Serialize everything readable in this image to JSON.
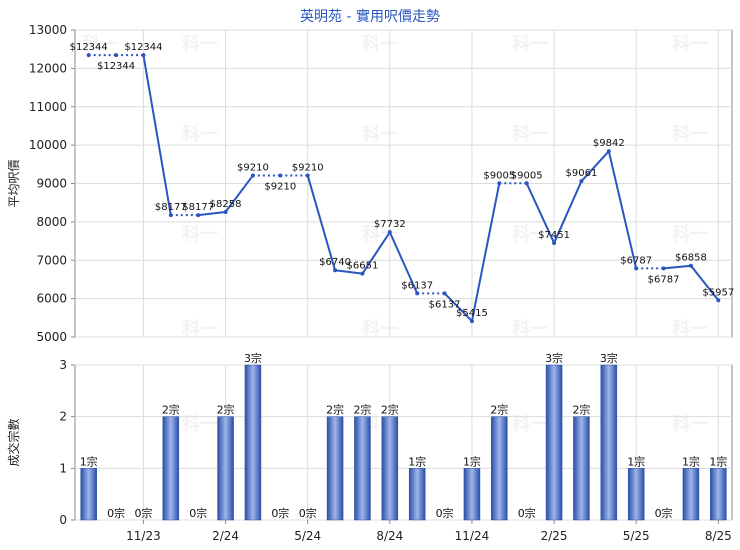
{
  "title": "英明苑 - 實用呎價走勢",
  "chart_data": [
    {
      "type": "line",
      "ylabel": "平均呎價",
      "ylim": [
        5000,
        13000
      ],
      "yticks": [
        5000,
        6000,
        7000,
        8000,
        9000,
        10000,
        11000,
        12000,
        13000
      ],
      "grid": true,
      "points": [
        {
          "value": 12344,
          "label": "$12344",
          "dashed_to_next": true
        },
        {
          "value": 12344,
          "label": "$12344",
          "dashed_to_next": true
        },
        {
          "value": 12344,
          "label": "$12344",
          "dashed_to_next": false
        },
        {
          "value": 8177,
          "label": "$8177",
          "dashed_to_next": true
        },
        {
          "value": 8177,
          "label": "$8177",
          "dashed_to_next": false
        },
        {
          "value": 8258,
          "label": "$8258",
          "dashed_to_next": false
        },
        {
          "value": 9210,
          "label": "$9210",
          "dashed_to_next": true
        },
        {
          "value": 9210,
          "label": "$9210",
          "dashed_to_next": true
        },
        {
          "value": 9210,
          "label": "$9210",
          "dashed_to_next": false
        },
        {
          "value": 6740,
          "label": "$6740",
          "dashed_to_next": false
        },
        {
          "value": 6651,
          "label": "$6651",
          "dashed_to_next": false
        },
        {
          "value": 7732,
          "label": "$7732",
          "dashed_to_next": false
        },
        {
          "value": 6137,
          "label": "$6137",
          "dashed_to_next": true
        },
        {
          "value": 6137,
          "label": "$6137",
          "dashed_to_next": false
        },
        {
          "value": 5415,
          "label": "$5415",
          "dashed_to_next": false
        },
        {
          "value": 9005,
          "label": "$9005",
          "dashed_to_next": true
        },
        {
          "value": 9005,
          "label": "$9005",
          "dashed_to_next": false
        },
        {
          "value": 7451,
          "label": "$7451",
          "dashed_to_next": false
        },
        {
          "value": 9061,
          "label": "$9061",
          "dashed_to_next": false
        },
        {
          "value": 9842,
          "label": "$9842",
          "dashed_to_next": false
        },
        {
          "value": 6787,
          "label": "$6787",
          "dashed_to_next": true
        },
        {
          "value": 6787,
          "label": "$6787",
          "dashed_to_next": false
        },
        {
          "value": 6858,
          "label": "$6858",
          "dashed_to_next": false
        },
        {
          "value": 5957,
          "label": "$5957",
          "dashed_to_next": false
        }
      ]
    },
    {
      "type": "bar",
      "ylabel": "成交宗數",
      "ylim": [
        0,
        3
      ],
      "yticks": [
        0,
        1,
        2,
        3
      ],
      "grid": true,
      "values": [
        1,
        0,
        0,
        2,
        0,
        2,
        3,
        0,
        0,
        2,
        2,
        2,
        1,
        0,
        1,
        2,
        0,
        3,
        2,
        3,
        1,
        0,
        1,
        1
      ],
      "labels": [
        "1宗",
        "0宗",
        "0宗",
        "2宗",
        "0宗",
        "2宗",
        "3宗",
        "0宗",
        "0宗",
        "2宗",
        "2宗",
        "2宗",
        "1宗",
        "0宗",
        "1宗",
        "2宗",
        "0宗",
        "3宗",
        "2宗",
        "3宗",
        "1宗",
        "0宗",
        "1宗",
        "1宗"
      ]
    }
  ],
  "x_axis": {
    "categories": [
      "",
      "",
      "11/23",
      "",
      "",
      "2/24",
      "",
      "",
      "5/24",
      "",
      "",
      "8/24",
      "",
      "",
      "11/24",
      "",
      "",
      "2/25",
      "",
      "",
      "5/25",
      "",
      "",
      "8/25"
    ]
  },
  "watermark": "科一",
  "colors": {
    "line": "#2b55c0",
    "bar_dark": "#2a4fa8",
    "bar_light": "#9fb6ea",
    "title": "#2b55c0",
    "grid": "#dcdcdc",
    "axis": "#888888"
  }
}
